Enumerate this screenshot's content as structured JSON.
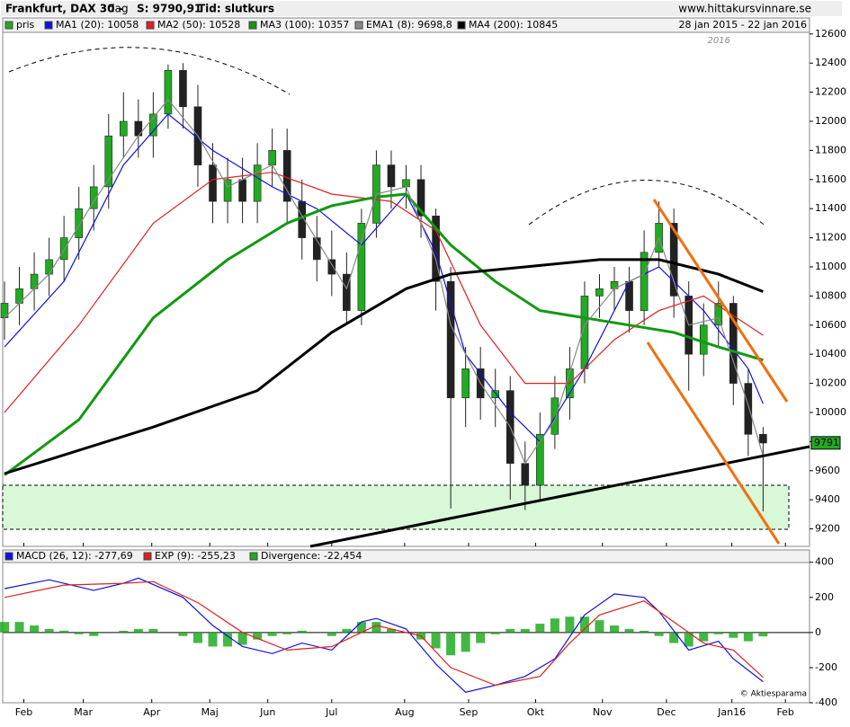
{
  "chart_data": [
    {
      "type": "candlestick",
      "title": "Frankfurt, DAX 30 -",
      "period": "dag",
      "last": "S: 9790,91",
      "mode": "Tid: slutkurs",
      "source": "www.hittakursvinnare.se",
      "date_range": "28 jan 2015 - 22 jan 2016",
      "year_note": "2016",
      "price_name": "pris",
      "up_color": "#22aa22",
      "down_color": "#222222",
      "last_price": 9791,
      "x": [
        0,
        1,
        2,
        3,
        4,
        5,
        6,
        7,
        8,
        9,
        10,
        11,
        12,
        13,
        14,
        15,
        16,
        17,
        18,
        19,
        20,
        21,
        22,
        23,
        24,
        25,
        26,
        27,
        28,
        29,
        30,
        31,
        32,
        33,
        34,
        35,
        36,
        37,
        38,
        39,
        40,
        41,
        42,
        43,
        44,
        45,
        46,
        47,
        48,
        49,
        50,
        51
      ],
      "open": [
        10650,
        10750,
        10850,
        10950,
        11050,
        11200,
        11400,
        11550,
        11900,
        12000,
        11900,
        12050,
        12350,
        12100,
        11700,
        11450,
        11600,
        11450,
        11700,
        11800,
        11450,
        11200,
        11050,
        10950,
        10700,
        11300,
        11700,
        11550,
        11600,
        11350,
        10900,
        10100,
        10300,
        10100,
        10150,
        9650,
        9500,
        9850,
        10100,
        10300,
        10800,
        10850,
        10900,
        10700,
        11100,
        11300,
        10800,
        10400,
        10600,
        10750,
        10200,
        9850
      ],
      "high": [
        10900,
        11000,
        11100,
        11200,
        11350,
        11550,
        11700,
        12050,
        12200,
        12150,
        12200,
        12390,
        12400,
        12250,
        11850,
        11750,
        11750,
        11850,
        11950,
        11950,
        11600,
        11350,
        11250,
        11100,
        11400,
        11800,
        11800,
        11700,
        11700,
        11400,
        11000,
        10450,
        10450,
        10300,
        10250,
        9800,
        10000,
        10250,
        10450,
        10900,
        10950,
        11000,
        11000,
        11250,
        11450,
        11400,
        10900,
        10750,
        10900,
        10800,
        10300,
        9900
      ],
      "low": [
        10500,
        10600,
        10700,
        10800,
        10900,
        11050,
        11250,
        11400,
        11750,
        11750,
        11750,
        11950,
        11950,
        11550,
        11300,
        11300,
        11300,
        11300,
        11550,
        11300,
        11050,
        10900,
        10800,
        10600,
        10600,
        11200,
        11400,
        11400,
        11200,
        10700,
        9340,
        9900,
        9950,
        9900,
        9400,
        9330,
        9400,
        9750,
        9950,
        10200,
        10650,
        10700,
        10550,
        10600,
        11000,
        10650,
        10150,
        10250,
        10450,
        10050,
        9700,
        9320
      ],
      "close": [
        10750,
        10850,
        10950,
        11050,
        11200,
        11400,
        11550,
        11900,
        12000,
        11900,
        12050,
        12350,
        12100,
        11700,
        11450,
        11600,
        11450,
        11700,
        11800,
        11450,
        11200,
        11050,
        10950,
        10700,
        11300,
        11700,
        11550,
        11600,
        11350,
        10900,
        10100,
        10300,
        10100,
        10150,
        9650,
        9500,
        9850,
        10100,
        10300,
        10800,
        10850,
        10900,
        10700,
        11100,
        11300,
        10800,
        10400,
        10600,
        10750,
        10200,
        9850,
        9790
      ],
      "series": [
        {
          "name": "MA1 (20): 10058",
          "color": "#1010e0",
          "x": [
            0,
            4,
            8,
            11,
            14,
            18,
            21,
            24,
            27,
            29,
            31,
            34,
            36,
            39,
            42,
            44,
            47,
            50,
            51
          ],
          "values": [
            10450,
            10900,
            11700,
            12050,
            11800,
            11550,
            11400,
            11150,
            11500,
            11100,
            10400,
            10000,
            9800,
            10300,
            10900,
            11000,
            10700,
            10300,
            10060
          ]
        },
        {
          "name": "MA2 (50): 10528",
          "color": "#e02020",
          "x": [
            0,
            5,
            10,
            14,
            18,
            22,
            26,
            29,
            32,
            35,
            38,
            41,
            44,
            47,
            51
          ],
          "values": [
            10000,
            10600,
            11300,
            11600,
            11650,
            11500,
            11450,
            11250,
            10600,
            10200,
            10200,
            10500,
            10700,
            10800,
            10530
          ]
        },
        {
          "name": "MA3 (100): 10357",
          "color": "#119911",
          "x": [
            0,
            5,
            10,
            15,
            19,
            22,
            25,
            27,
            30,
            33,
            36,
            39,
            42,
            45,
            48,
            51
          ],
          "values": [
            9570,
            9950,
            10650,
            11050,
            11300,
            11420,
            11480,
            11500,
            11150,
            10900,
            10700,
            10650,
            10600,
            10550,
            10450,
            10360
          ]
        },
        {
          "name": "EMA1 (8): 9698,8",
          "color": "#888888",
          "x": [
            0,
            3,
            6,
            9,
            11,
            13,
            15,
            18,
            20,
            23,
            25,
            27,
            29,
            30,
            32,
            34,
            35,
            37,
            39,
            41,
            43,
            44,
            46,
            48,
            50,
            51
          ],
          "values": [
            10650,
            10950,
            11450,
            11900,
            12150,
            11900,
            11550,
            11700,
            11350,
            10850,
            11500,
            11550,
            11050,
            10600,
            10200,
            9900,
            9650,
            9950,
            10600,
            10850,
            10950,
            11200,
            10600,
            10650,
            10050,
            9700
          ]
        },
        {
          "name": "MA4 (200): 10845",
          "color": "#000000",
          "x": [
            0,
            10,
            17,
            22,
            27,
            30,
            35,
            40,
            44,
            48,
            51
          ],
          "values": [
            9580,
            9900,
            10150,
            10550,
            10850,
            10950,
            11000,
            11050,
            11050,
            10950,
            10830
          ]
        }
      ],
      "xlim": [
        0,
        54
      ],
      "ylim": [
        9080,
        12710
      ],
      "yticks": [
        9200,
        9400,
        9600,
        9800,
        10000,
        10200,
        10400,
        10600,
        10800,
        11000,
        11200,
        11400,
        11600,
        11800,
        12000,
        12200,
        12400,
        12600
      ],
      "xticks": [
        {
          "value": 1.3,
          "label": "Feb"
        },
        {
          "value": 5.3,
          "label": "Mar"
        },
        {
          "value": 9.9,
          "label": "Apr"
        },
        {
          "value": 13.8,
          "label": "Maj"
        },
        {
          "value": 17.7,
          "label": "Jun"
        },
        {
          "value": 22,
          "label": "Jul"
        },
        {
          "value": 26.9,
          "label": "Aug"
        },
        {
          "value": 31.2,
          "label": "Sep"
        },
        {
          "value": 35.7,
          "label": "Okt"
        },
        {
          "value": 40.2,
          "label": "Nov"
        },
        {
          "value": 44.5,
          "label": "Dec"
        },
        {
          "value": 48.9,
          "label": "Jan16"
        },
        {
          "value": 52.5,
          "label": "Feb"
        }
      ]
    },
    {
      "type": "macd",
      "credit": "© Aktiesparama",
      "series": [
        {
          "name": "MACD (26, 12): -277,69",
          "color": "#1010e0",
          "x": [
            0,
            3,
            6,
            8,
            9,
            12,
            14,
            16,
            18,
            20,
            22,
            24,
            25,
            27,
            29,
            31,
            33,
            35,
            37,
            39,
            41,
            43,
            44,
            46,
            48,
            49,
            51
          ],
          "values": [
            250,
            300,
            240,
            280,
            310,
            200,
            40,
            -80,
            -120,
            -60,
            -100,
            60,
            80,
            20,
            -180,
            -340,
            -300,
            -250,
            -150,
            100,
            220,
            200,
            120,
            -100,
            -50,
            -150,
            -280
          ]
        },
        {
          "name": "EXP (9): -255,23",
          "color": "#e02020",
          "x": [
            0,
            4,
            8,
            10,
            13,
            16,
            19,
            22,
            25,
            28,
            30,
            33,
            36,
            38,
            40,
            43,
            45,
            47,
            49,
            51
          ],
          "values": [
            200,
            270,
            280,
            290,
            170,
            0,
            -100,
            -80,
            40,
            -20,
            -200,
            -300,
            -250,
            -60,
            100,
            180,
            60,
            -60,
            -100,
            -255
          ]
        }
      ],
      "divergence": {
        "name": "Divergence: -22,454",
        "color": "#22aa22",
        "values": [
          60,
          60,
          40,
          20,
          10,
          -10,
          -20,
          0,
          10,
          20,
          20,
          0,
          -20,
          -60,
          -80,
          -80,
          -70,
          -40,
          -20,
          -10,
          10,
          0,
          -20,
          20,
          60,
          60,
          20,
          0,
          -40,
          -90,
          -130,
          -110,
          -60,
          -10,
          20,
          20,
          50,
          80,
          90,
          90,
          70,
          40,
          20,
          10,
          -20,
          -60,
          -80,
          -50,
          -10,
          -30,
          -50,
          -22
        ]
      },
      "ylim": [
        -400,
        470
      ],
      "yticks": [
        400,
        200,
        0,
        -200,
        -400
      ]
    }
  ]
}
